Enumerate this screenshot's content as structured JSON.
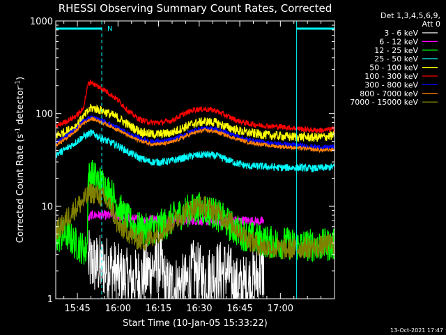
{
  "chart_data": {
    "type": "line",
    "title": "RHESSI Observing Summary Count Rates, Corrected",
    "xlabel": "Start Time (10-Jan-05 15:33:22)",
    "ylabel": "Corrected Count Rate (s⁻¹ detector⁻¹)",
    "ylabel_main": "Corrected Count Rate (s",
    "ylabel_exp1": "-1",
    "ylabel_mid": " detector",
    "ylabel_exp2": "-1",
    "ylabel_end": ")",
    "yscale": "log",
    "ylim": [
      1,
      1000
    ],
    "xlim_min": [
      37,
      140
    ],
    "x_ticks": [
      {
        "min": 45,
        "label": "15:45"
      },
      {
        "min": 60,
        "label": "16:00"
      },
      {
        "min": 75,
        "label": "16:15"
      },
      {
        "min": 90,
        "label": "16:30"
      },
      {
        "min": 105,
        "label": "16:45"
      },
      {
        "min": 120,
        "label": "17:00"
      }
    ],
    "y_ticks": [
      {
        "value": 1,
        "label": "1"
      },
      {
        "value": 10,
        "label": "10"
      },
      {
        "value": 100,
        "label": "100"
      },
      {
        "value": 1000,
        "label": "1000"
      }
    ],
    "legend_header": [
      "Det 1,3,4,5,6,9,",
      "Att 0"
    ],
    "legend_position": "top-right",
    "footer_date": "13-Oct-2021 17:47",
    "night_flag": {
      "label": "N",
      "color": "#00ffff",
      "intervals": [
        [
          37,
          54
        ],
        [
          126,
          140
        ]
      ],
      "boundaries": [
        37,
        54,
        126,
        140
      ]
    },
    "series": [
      {
        "name": "3 - 6 keV",
        "color": "#ffffff",
        "points": [
          [
            49,
            2.5
          ],
          [
            50,
            2.4
          ],
          [
            55,
            2.2
          ],
          [
            57,
            2.2
          ],
          [
            60,
            1.8
          ],
          [
            65,
            1.5
          ],
          [
            70,
            1.8
          ],
          [
            75,
            2.5
          ],
          [
            78,
            1.3
          ],
          [
            85,
            1.4
          ],
          [
            88,
            2.0
          ],
          [
            92,
            1.6
          ],
          [
            96,
            1.9
          ],
          [
            100,
            2.0
          ],
          [
            104,
            1.3
          ],
          [
            108,
            1.4
          ],
          [
            114,
            2.0
          ]
        ],
        "noise": 0.35
      },
      {
        "name": "6 - 12 keV",
        "color": "#ff00ff",
        "points": [
          [
            49,
            7
          ],
          [
            50,
            8
          ],
          [
            55,
            8
          ],
          [
            60,
            7.8
          ],
          [
            65,
            7.3
          ],
          [
            70,
            7.2
          ],
          [
            75,
            7.3
          ],
          [
            80,
            7
          ],
          [
            86,
            7
          ],
          [
            90,
            7
          ],
          [
            95,
            6.8
          ],
          [
            100,
            6.9
          ],
          [
            106,
            7
          ],
          [
            110,
            6.9
          ],
          [
            114,
            6.8
          ]
        ],
        "noise": 0.05
      },
      {
        "name": "12 - 25 keV",
        "color": "#00ff00",
        "points": [
          [
            37,
            4.5
          ],
          [
            41,
            5
          ],
          [
            44,
            4
          ],
          [
            47,
            3.5
          ],
          [
            48.5,
            3.2
          ],
          [
            49,
            20
          ],
          [
            50,
            22
          ],
          [
            54,
            18
          ],
          [
            58,
            13
          ],
          [
            62,
            8
          ],
          [
            66,
            6
          ],
          [
            70,
            5.5
          ],
          [
            74,
            6
          ],
          [
            78,
            6.5
          ],
          [
            82,
            8
          ],
          [
            86,
            9
          ],
          [
            90,
            9.5
          ],
          [
            94,
            9
          ],
          [
            98,
            7.5
          ],
          [
            102,
            6
          ],
          [
            106,
            5
          ],
          [
            110,
            4.5
          ],
          [
            114,
            4.2
          ],
          [
            118,
            4
          ],
          [
            122,
            4
          ],
          [
            126,
            3.8
          ],
          [
            130,
            3.8
          ],
          [
            134,
            3.8
          ],
          [
            140,
            3.8
          ]
        ],
        "noise": 0.18
      },
      {
        "name": "25 - 50 keV",
        "color": "#00ffff",
        "points": [
          [
            37,
            36
          ],
          [
            40,
            40
          ],
          [
            44,
            48
          ],
          [
            47,
            56
          ],
          [
            50,
            62
          ],
          [
            52,
            58
          ],
          [
            55,
            52
          ],
          [
            60,
            45
          ],
          [
            64,
            38
          ],
          [
            68,
            33
          ],
          [
            72,
            30
          ],
          [
            76,
            30
          ],
          [
            80,
            31
          ],
          [
            84,
            33
          ],
          [
            88,
            35
          ],
          [
            92,
            36
          ],
          [
            96,
            35
          ],
          [
            100,
            32
          ],
          [
            104,
            29
          ],
          [
            108,
            27
          ],
          [
            112,
            27
          ],
          [
            116,
            26.5
          ],
          [
            120,
            26
          ],
          [
            124,
            26
          ],
          [
            128,
            26
          ],
          [
            132,
            25.5
          ],
          [
            136,
            26
          ],
          [
            140,
            26.5
          ]
        ],
        "noise": 0.04
      },
      {
        "name": "50 - 100 keV",
        "color": "#ffff00",
        "points": [
          [
            37,
            58
          ],
          [
            40,
            62
          ],
          [
            44,
            72
          ],
          [
            47,
            90
          ],
          [
            50,
            115
          ],
          [
            52,
            112
          ],
          [
            55,
            105
          ],
          [
            60,
            90
          ],
          [
            64,
            75
          ],
          [
            68,
            64
          ],
          [
            72,
            60
          ],
          [
            76,
            60
          ],
          [
            80,
            62
          ],
          [
            84,
            70
          ],
          [
            88,
            78
          ],
          [
            92,
            82
          ],
          [
            96,
            80
          ],
          [
            100,
            72
          ],
          [
            104,
            66
          ],
          [
            108,
            62
          ],
          [
            112,
            60
          ],
          [
            116,
            58
          ],
          [
            120,
            57
          ],
          [
            124,
            56
          ],
          [
            128,
            56
          ],
          [
            132,
            55
          ],
          [
            136,
            56
          ],
          [
            140,
            58
          ]
        ],
        "noise": 0.05
      },
      {
        "name": "100 - 300 keV",
        "color": "#ff0000",
        "points": [
          [
            37,
            72
          ],
          [
            40,
            80
          ],
          [
            44,
            92
          ],
          [
            47,
            110
          ],
          [
            49,
            210
          ],
          [
            50,
            220
          ],
          [
            52,
            200
          ],
          [
            55,
            180
          ],
          [
            60,
            140
          ],
          [
            64,
            105
          ],
          [
            68,
            86
          ],
          [
            72,
            80
          ],
          [
            76,
            80
          ],
          [
            80,
            84
          ],
          [
            84,
            98
          ],
          [
            88,
            110
          ],
          [
            92,
            112
          ],
          [
            96,
            108
          ],
          [
            100,
            95
          ],
          [
            104,
            84
          ],
          [
            108,
            78
          ],
          [
            112,
            75
          ],
          [
            116,
            73
          ],
          [
            120,
            72
          ],
          [
            124,
            70
          ],
          [
            128,
            68
          ],
          [
            132,
            66
          ],
          [
            136,
            66
          ],
          [
            140,
            68
          ]
        ],
        "noise": 0.03
      },
      {
        "name": "300 - 800 keV",
        "color": "#0000ff",
        "points": [
          [
            37,
            48
          ],
          [
            40,
            55
          ],
          [
            44,
            66
          ],
          [
            47,
            82
          ],
          [
            50,
            92
          ],
          [
            52,
            88
          ],
          [
            55,
            82
          ],
          [
            60,
            70
          ],
          [
            64,
            60
          ],
          [
            68,
            54
          ],
          [
            72,
            50
          ],
          [
            76,
            50
          ],
          [
            80,
            52
          ],
          [
            84,
            58
          ],
          [
            88,
            66
          ],
          [
            92,
            70
          ],
          [
            96,
            68
          ],
          [
            100,
            62
          ],
          [
            104,
            57
          ],
          [
            108,
            52
          ],
          [
            112,
            50
          ],
          [
            116,
            48
          ],
          [
            120,
            47
          ],
          [
            124,
            46
          ],
          [
            128,
            45
          ],
          [
            132,
            44
          ],
          [
            136,
            43
          ],
          [
            140,
            44
          ]
        ],
        "noise": 0.025
      },
      {
        "name": "800 - 7000 keV",
        "color": "#ff8000",
        "points": [
          [
            37,
            45
          ],
          [
            40,
            52
          ],
          [
            44,
            63
          ],
          [
            47,
            78
          ],
          [
            50,
            88
          ],
          [
            52,
            85
          ],
          [
            55,
            78
          ],
          [
            60,
            67
          ],
          [
            64,
            57
          ],
          [
            68,
            51
          ],
          [
            72,
            47
          ],
          [
            76,
            47
          ],
          [
            80,
            49
          ],
          [
            84,
            55
          ],
          [
            88,
            62
          ],
          [
            92,
            66
          ],
          [
            96,
            64
          ],
          [
            100,
            58
          ],
          [
            104,
            53
          ],
          [
            108,
            49
          ],
          [
            112,
            47
          ],
          [
            116,
            45
          ],
          [
            120,
            44
          ],
          [
            124,
            43
          ],
          [
            128,
            42
          ],
          [
            132,
            41
          ],
          [
            136,
            40
          ],
          [
            140,
            41
          ]
        ],
        "noise": 0.02
      },
      {
        "name": "7000 - 15000 keV",
        "color": "#808000",
        "points": [
          [
            37,
            5.5
          ],
          [
            39,
            6
          ],
          [
            42,
            8
          ],
          [
            45,
            10
          ],
          [
            48,
            12
          ],
          [
            50,
            14
          ],
          [
            52,
            13.5
          ],
          [
            55,
            12
          ],
          [
            58,
            9
          ],
          [
            60,
            6
          ],
          [
            63,
            5.5
          ],
          [
            66,
            4.5
          ],
          [
            70,
            4.2
          ],
          [
            74,
            5
          ],
          [
            78,
            6
          ],
          [
            82,
            7.5
          ],
          [
            86,
            9
          ],
          [
            90,
            10
          ],
          [
            94,
            9.5
          ],
          [
            98,
            8
          ],
          [
            102,
            6.5
          ],
          [
            106,
            5
          ],
          [
            110,
            4
          ],
          [
            114,
            3.6
          ],
          [
            118,
            3.5
          ],
          [
            122,
            3.4
          ],
          [
            126,
            3.5
          ],
          [
            130,
            3.6
          ],
          [
            134,
            3.6
          ],
          [
            137,
            3.8
          ],
          [
            140,
            4
          ]
        ],
        "noise": 0.12
      }
    ]
  }
}
